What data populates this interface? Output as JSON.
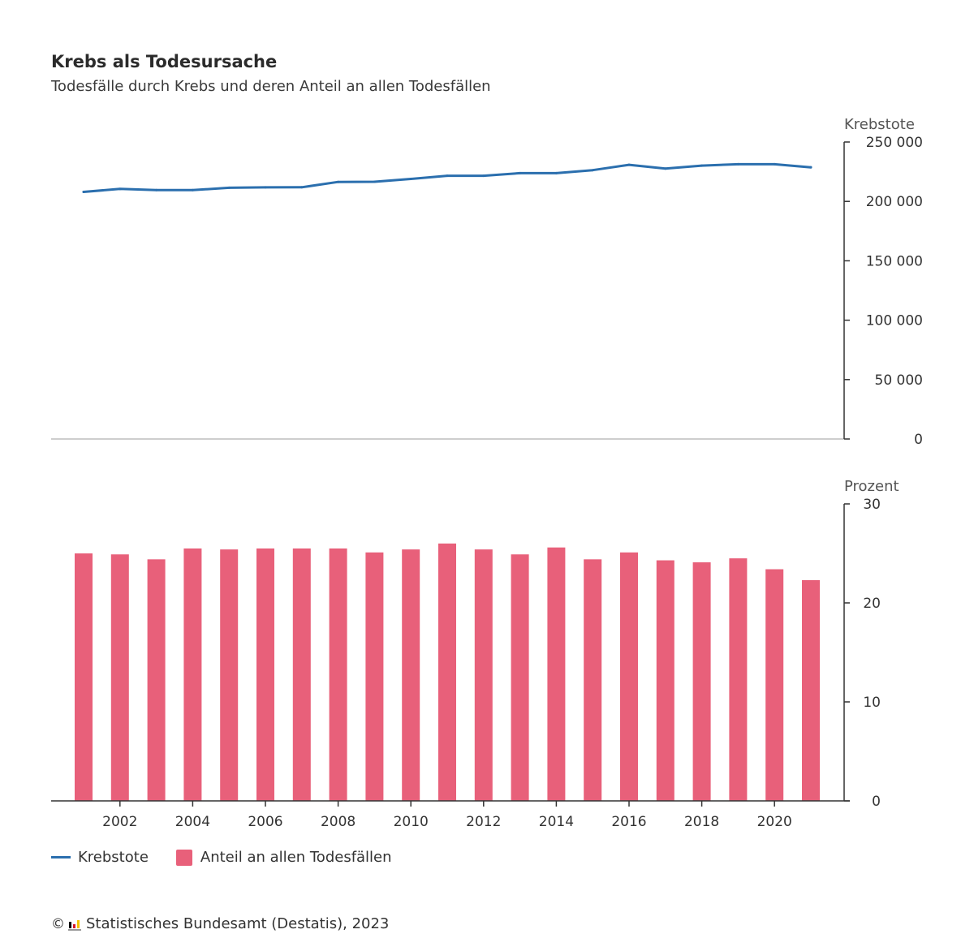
{
  "header": {
    "title": "Krebs als Todesursache",
    "subtitle": "Todesfälle durch Krebs und deren Anteil an allen Todesfällen"
  },
  "colors": {
    "line": "#2b6fae",
    "bar": "#e8607a",
    "axis": "#333333",
    "baseline": "#bdbdbd"
  },
  "chart_data": [
    {
      "type": "line",
      "ylabel": "Krebstote",
      "ylim": [
        0,
        250000
      ],
      "yticks": [
        0,
        50000,
        100000,
        150000,
        200000,
        250000
      ],
      "ytick_labels": [
        "0",
        "50 000",
        "100 000",
        "150 000",
        "200 000",
        "250 000"
      ],
      "x": [
        2001,
        2002,
        2003,
        2004,
        2005,
        2006,
        2007,
        2008,
        2009,
        2010,
        2011,
        2012,
        2013,
        2014,
        2015,
        2016,
        2017,
        2018,
        2019,
        2020,
        2021
      ],
      "series": [
        {
          "name": "Krebstote",
          "values": [
            208000,
            210500,
            209500,
            209500,
            211500,
            211800,
            211900,
            216400,
            216500,
            218900,
            221600,
            221600,
            223800,
            223800,
            226300,
            230800,
            227600,
            230100,
            231300,
            231300,
            228700
          ]
        }
      ]
    },
    {
      "type": "bar",
      "ylabel": "Prozent",
      "ylim": [
        0,
        30
      ],
      "yticks": [
        0,
        10,
        20,
        30
      ],
      "ytick_labels": [
        "0",
        "10",
        "20",
        "30"
      ],
      "categories": [
        2001,
        2002,
        2003,
        2004,
        2005,
        2006,
        2007,
        2008,
        2009,
        2010,
        2011,
        2012,
        2013,
        2014,
        2015,
        2016,
        2017,
        2018,
        2019,
        2020,
        2021
      ],
      "xtick_labels": [
        "2002",
        "2004",
        "2006",
        "2008",
        "2010",
        "2012",
        "2014",
        "2016",
        "2018",
        "2020"
      ],
      "series": [
        {
          "name": "Anteil an allen Todesfällen",
          "values": [
            25.0,
            24.9,
            24.4,
            25.5,
            25.4,
            25.5,
            25.5,
            25.5,
            25.1,
            25.4,
            26.0,
            25.4,
            24.9,
            25.6,
            24.4,
            25.1,
            24.3,
            24.1,
            24.5,
            23.4,
            22.3
          ]
        }
      ]
    }
  ],
  "legend": {
    "line_label": "Krebstote",
    "bar_label": "Anteil an allen Todesfällen"
  },
  "footer": {
    "copyright_symbol": "©",
    "source": "Statistisches Bundesamt (Destatis), 2023"
  }
}
